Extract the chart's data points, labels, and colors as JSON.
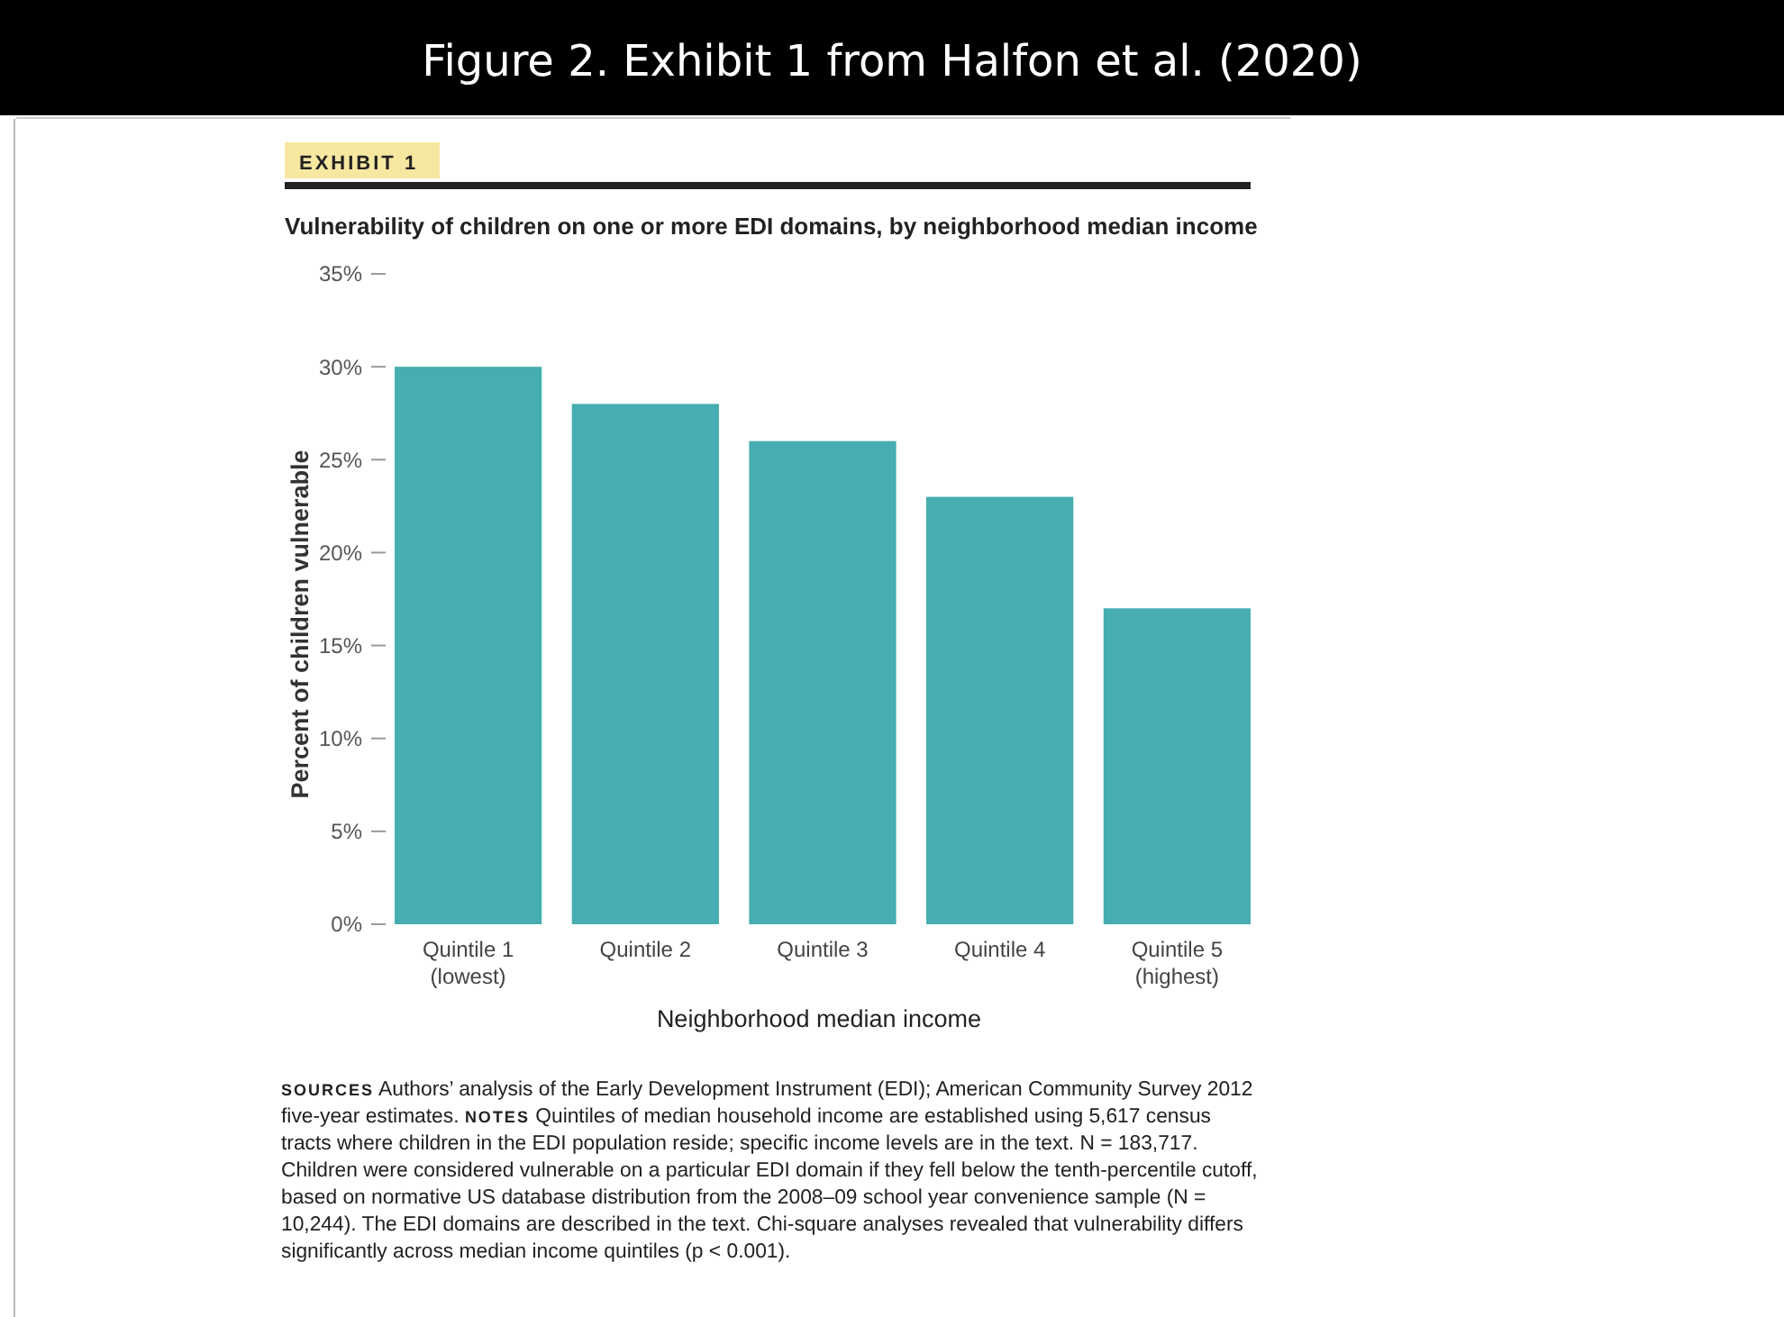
{
  "chart_data": {
    "type": "bar",
    "title": "Figure 2. Exhibit 1 from Halfon et al. (2020)",
    "subtitle": "Vulnerability of children on one or more EDI domains, by neighborhood median income",
    "xlabel": "Neighborhood median income",
    "ylabel": "Percent of children vulnerable",
    "categories": [
      "Quintile 1\n(lowest)",
      "Quintile 2",
      "Quintile 3",
      "Quintile 4",
      "Quintile 5\n(highest)"
    ],
    "values": [
      30,
      28,
      26,
      23,
      17
    ],
    "color": "#46adb0",
    "ylim": [
      0,
      35
    ],
    "yticks": [
      {
        "value": 0,
        "label": "0%"
      },
      {
        "value": 5,
        "label": "5%"
      },
      {
        "value": 10,
        "label": "10%"
      },
      {
        "value": 15,
        "label": "15%"
      },
      {
        "value": 20,
        "label": "20%"
      },
      {
        "value": 25,
        "label": "25%"
      },
      {
        "value": 30,
        "label": "30%"
      },
      {
        "value": 35,
        "label": "35%"
      }
    ],
    "grid": false,
    "annotations": [
      "EXHIBIT 1",
      "SOURCES Authors’ analysis of the Early Development Instrument (EDI); American Community Survey 2012 five-year estimates.",
      "NOTES Quintiles of median household income are established using 5,617 census tracts where children in the EDI population reside; specific income levels are in the text. N = 183,717. Children were considered vulnerable on a particular EDI domain if they fell below the tenth-percentile cutoff, based on normative US database distribution from the 2008–09 school year convenience sample (N = 10,244). The EDI domains are described in the text. Chi-square analyses revealed that vulnerability differs significantly across median income quintiles (p < 0.001)."
    ]
  }
}
